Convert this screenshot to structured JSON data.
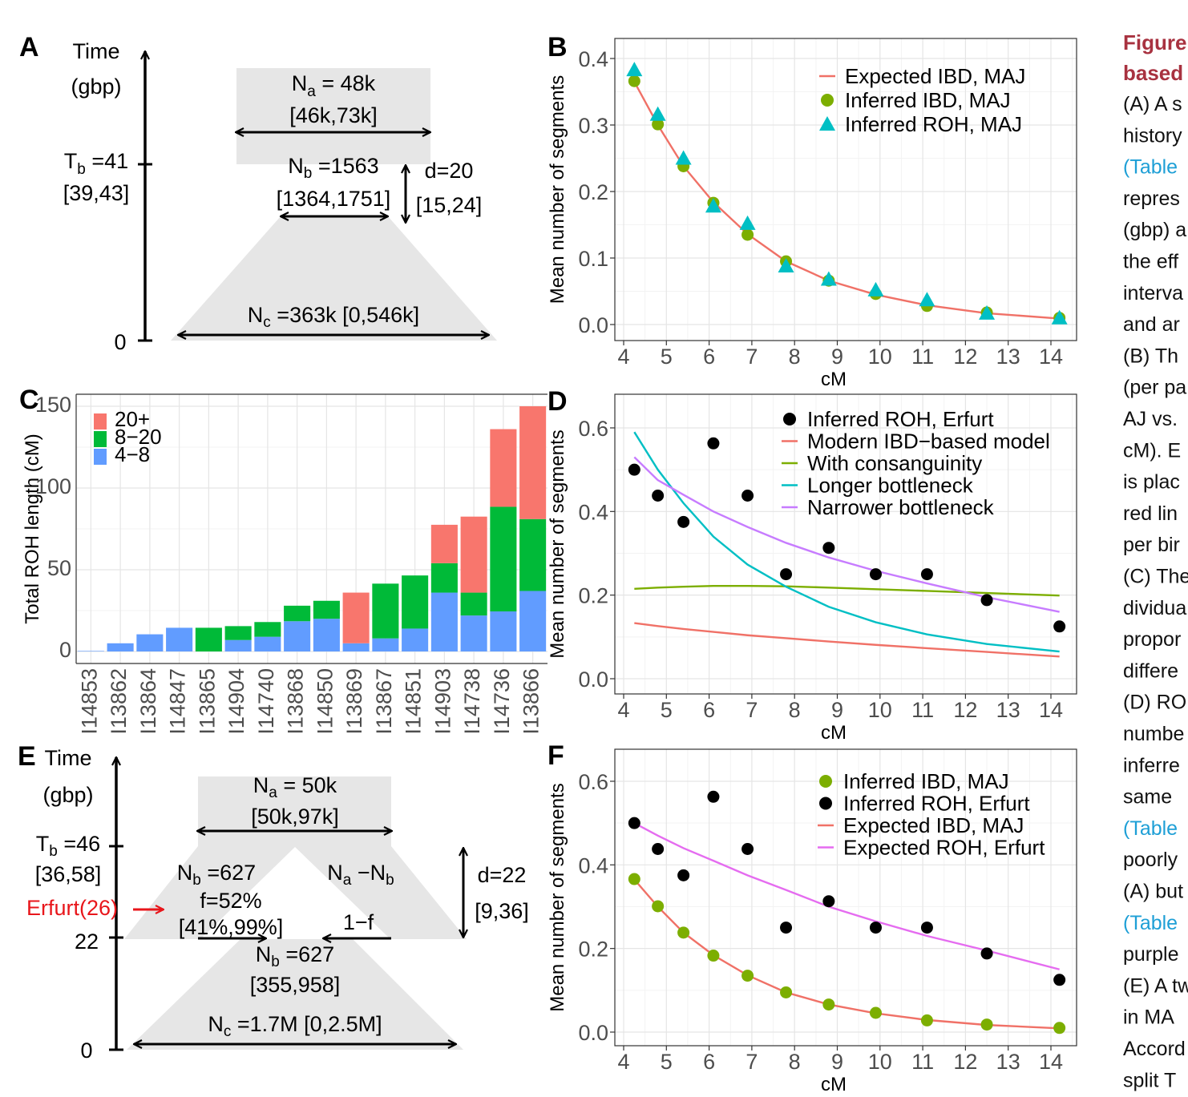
{
  "panel_letters": {
    "a": "A",
    "b": "B",
    "c": "C",
    "d": "D",
    "e": "E",
    "f": "F"
  },
  "diagram_a": {
    "time_label": "Time",
    "time_unit": "(gbp)",
    "tb_prefix": "T",
    "tb_sub": "b",
    "tb_value": " =41",
    "tb_ci": "[39,43]",
    "zero": "0",
    "na_prefix": "N",
    "na_sub": "a",
    "na_value": " = 48k",
    "na_ci": "[46k,73k]",
    "nb_prefix": "N",
    "nb_sub": "b",
    "nb_value": " =1563",
    "nb_ci": "[1364,1751]",
    "d_value": "d=20",
    "d_ci": "[15,24]",
    "nc_prefix": "N",
    "nc_sub": "c",
    "nc_value": " =363k [0,546k]"
  },
  "diagram_e": {
    "time_label": "Time",
    "time_unit": "(gbp)",
    "tb_prefix": "T",
    "tb_sub": "b",
    "tb_value": " =46",
    "tb_ci": "[36,58]",
    "erfurt": "Erfurt(26)",
    "t22": "22",
    "zero": "0",
    "na_prefix": "N",
    "na_sub": "a",
    "na_value": " = 50k",
    "na_ci": "[50k,97k]",
    "nb_prefix": "N",
    "nb_sub": "b",
    "nb_value": " =627",
    "nanb_a": "N",
    "nanb_asub": "a",
    "nanb_mid": " −N",
    "nanb_bsub": "b",
    "f_value": "f=52%",
    "f_ci": "[41%,99%]",
    "one_minus_f": "1−f",
    "nb2_prefix": "N",
    "nb2_sub": "b",
    "nb2_value": " =627",
    "nb2_ci": "[355,958]",
    "nc_prefix": "N",
    "nc_sub": "c",
    "nc_value": " =1.7M [0,2.5M]",
    "d_value": "d=22",
    "d_ci": "[9,36]",
    "erfurt_color": "#e8161b"
  },
  "chart_data": [
    {
      "id": "B",
      "type": "scatter+line",
      "xlabel": "cM",
      "ylabel": "Mean number of segments",
      "xlim": [
        4,
        14
      ],
      "ylim": [
        0,
        0.4
      ],
      "xticks": [
        "4",
        "5",
        "6",
        "7",
        "8",
        "9",
        "10",
        "11",
        "12",
        "13",
        "14"
      ],
      "yticks": [
        "0.0",
        "0.1",
        "0.2",
        "0.3",
        "0.4"
      ],
      "grid": true,
      "legend_position": "top-right",
      "x": [
        4.25,
        4.8,
        5.4,
        6.1,
        6.9,
        7.8,
        8.8,
        9.9,
        11.1,
        12.5,
        14.2
      ],
      "series": [
        {
          "name": "Expected IBD, MAJ",
          "kind": "line",
          "color": "#f07167",
          "values": [
            0.365,
            0.3,
            0.238,
            0.184,
            0.136,
            0.095,
            0.066,
            0.045,
            0.029,
            0.017,
            0.009
          ]
        },
        {
          "name": "Inferred IBD, MAJ",
          "kind": "circle",
          "color": "#7cae00",
          "values": [
            0.366,
            0.301,
            0.238,
            0.183,
            0.135,
            0.095,
            0.066,
            0.046,
            0.028,
            0.018,
            0.01
          ]
        },
        {
          "name": "Inferred ROH, MAJ",
          "kind": "triangle",
          "color": "#00bfc4",
          "values": [
            0.383,
            0.316,
            0.25,
            0.178,
            0.152,
            0.088,
            0.068,
            0.052,
            0.037,
            0.017,
            0.01
          ]
        }
      ]
    },
    {
      "id": "C",
      "type": "bar",
      "stacked": true,
      "ylabel": "Total ROH length (cM)",
      "xlabel": "",
      "ylim": [
        0,
        150
      ],
      "yticks": [
        "0",
        "50",
        "100",
        "150"
      ],
      "grid": true,
      "legend_position": "top-left",
      "categories": [
        "I14853",
        "I13862",
        "I13864",
        "I14847",
        "I13865",
        "I14904",
        "I14740",
        "I13868",
        "I14850",
        "I13869",
        "I13867",
        "I14851",
        "I14903",
        "I14738",
        "I14736",
        "I13866"
      ],
      "series": [
        {
          "name": "4−8",
          "color": "#619cff",
          "values": [
            0.3,
            5,
            10.5,
            14.5,
            0,
            7,
            9,
            18.5,
            20,
            5,
            8,
            14,
            36,
            22,
            24.5,
            37
          ]
        },
        {
          "name": "8−20",
          "color": "#00ba38",
          "values": [
            0,
            0,
            0,
            0,
            14.5,
            8.5,
            9,
            9.5,
            11,
            0,
            33.5,
            32.5,
            18,
            14,
            64,
            44
          ]
        },
        {
          "name": "20+",
          "color": "#f8766d",
          "values": [
            0,
            0,
            0,
            0,
            0,
            0,
            0,
            0,
            0,
            31,
            0,
            0,
            23.5,
            46.5,
            47.5,
            69
          ]
        }
      ]
    },
    {
      "id": "D",
      "type": "scatter+line",
      "xlabel": "cM",
      "ylabel": "Mean number of segments",
      "xlim": [
        4,
        14
      ],
      "ylim": [
        0,
        0.6
      ],
      "xticks": [
        "4",
        "5",
        "6",
        "7",
        "8",
        "9",
        "10",
        "11",
        "12",
        "13",
        "14"
      ],
      "yticks": [
        "0.0",
        "0.2",
        "0.4",
        "0.6"
      ],
      "grid": true,
      "legend_position": "top-right",
      "x": [
        4.25,
        4.8,
        5.4,
        6.1,
        6.9,
        7.8,
        8.8,
        9.9,
        11.1,
        12.5,
        14.2
      ],
      "series": [
        {
          "name": "Inferred ROH, Erfurt",
          "kind": "circle",
          "color": "#000000",
          "values": [
            0.5,
            0.438,
            0.375,
            0.563,
            0.438,
            0.25,
            0.313,
            0.25,
            0.25,
            0.188,
            0.125
          ]
        },
        {
          "name": "Modern IBD−based model",
          "kind": "line",
          "color": "#f07167",
          "values": [
            0.133,
            0.126,
            0.119,
            0.112,
            0.104,
            0.097,
            0.089,
            0.081,
            0.073,
            0.064,
            0.053
          ]
        },
        {
          "name": "With consanguinity",
          "kind": "line",
          "color": "#7cae00",
          "values": [
            0.215,
            0.218,
            0.22,
            0.222,
            0.222,
            0.221,
            0.218,
            0.214,
            0.21,
            0.205,
            0.199
          ]
        },
        {
          "name": "Longer bottleneck",
          "kind": "line",
          "color": "#00bfc4",
          "values": [
            0.59,
            0.5,
            0.42,
            0.34,
            0.273,
            0.22,
            0.172,
            0.135,
            0.106,
            0.083,
            0.065
          ]
        },
        {
          "name": "Narrower bottleneck",
          "kind": "line",
          "color": "#c77cff",
          "values": [
            0.53,
            0.475,
            0.44,
            0.4,
            0.363,
            0.325,
            0.29,
            0.258,
            0.228,
            0.195,
            0.16
          ]
        }
      ]
    },
    {
      "id": "F",
      "type": "scatter+line",
      "xlabel": "cM",
      "ylabel": "Mean number of segments",
      "xlim": [
        4,
        14
      ],
      "ylim": [
        0,
        0.6
      ],
      "xticks": [
        "4",
        "5",
        "6",
        "7",
        "8",
        "9",
        "10",
        "11",
        "12",
        "13",
        "14"
      ],
      "yticks": [
        "0.0",
        "0.2",
        "0.4",
        "0.6"
      ],
      "grid": true,
      "legend_position": "top-right",
      "x": [
        4.25,
        4.8,
        5.4,
        6.1,
        6.9,
        7.8,
        8.8,
        9.9,
        11.1,
        12.5,
        14.2
      ],
      "series": [
        {
          "name": "Inferred IBD, MAJ",
          "kind": "circle",
          "color": "#7cae00",
          "values": [
            0.366,
            0.301,
            0.238,
            0.183,
            0.135,
            0.095,
            0.066,
            0.046,
            0.028,
            0.018,
            0.01
          ]
        },
        {
          "name": "Inferred ROH, Erfurt",
          "kind": "circle",
          "color": "#000000",
          "values": [
            0.5,
            0.438,
            0.375,
            0.563,
            0.438,
            0.25,
            0.313,
            0.25,
            0.25,
            0.188,
            0.125
          ]
        },
        {
          "name": "Expected IBD, MAJ",
          "kind": "line",
          "color": "#f07167",
          "values": [
            0.365,
            0.3,
            0.238,
            0.184,
            0.136,
            0.095,
            0.066,
            0.045,
            0.029,
            0.017,
            0.009
          ]
        },
        {
          "name": "Expected ROH, Erfurt",
          "kind": "line",
          "color": "#e56cf0",
          "values": [
            0.5,
            0.47,
            0.44,
            0.41,
            0.375,
            0.34,
            0.3,
            0.265,
            0.23,
            0.195,
            0.15
          ]
        }
      ]
    }
  ],
  "caption": {
    "heading": [
      "Figure",
      "based"
    ],
    "lines": [
      {
        "text": "(A) A s"
      },
      {
        "text": "history"
      },
      {
        "text": "(Table",
        "link": true
      },
      {
        "text": "repres"
      },
      {
        "text": "(gbp) a"
      },
      {
        "text": "the eff"
      },
      {
        "text": "interva"
      },
      {
        "text": "and ar"
      },
      {
        "text": "(B) Th"
      },
      {
        "text": "(per pa"
      },
      {
        "text": "AJ vs."
      },
      {
        "text": "cM). E"
      },
      {
        "text": "is plac"
      },
      {
        "text": "red lin"
      },
      {
        "text": "per bir"
      },
      {
        "text": "(C) The"
      },
      {
        "text": "dividua"
      },
      {
        "text": "propor"
      },
      {
        "text": "differe"
      },
      {
        "text": "(D) RO"
      },
      {
        "text": "numbe"
      },
      {
        "text": "inferre"
      },
      {
        "text": "same"
      },
      {
        "text": "(Table",
        "link": true
      },
      {
        "text": "poorly"
      },
      {
        "text": "(A) but"
      },
      {
        "text": "(Table",
        "link": true
      },
      {
        "text": "purple"
      },
      {
        "text": "(E) A tw"
      },
      {
        "text": "in  MA"
      },
      {
        "text": "Accord"
      },
      {
        "text": "split T"
      }
    ]
  }
}
